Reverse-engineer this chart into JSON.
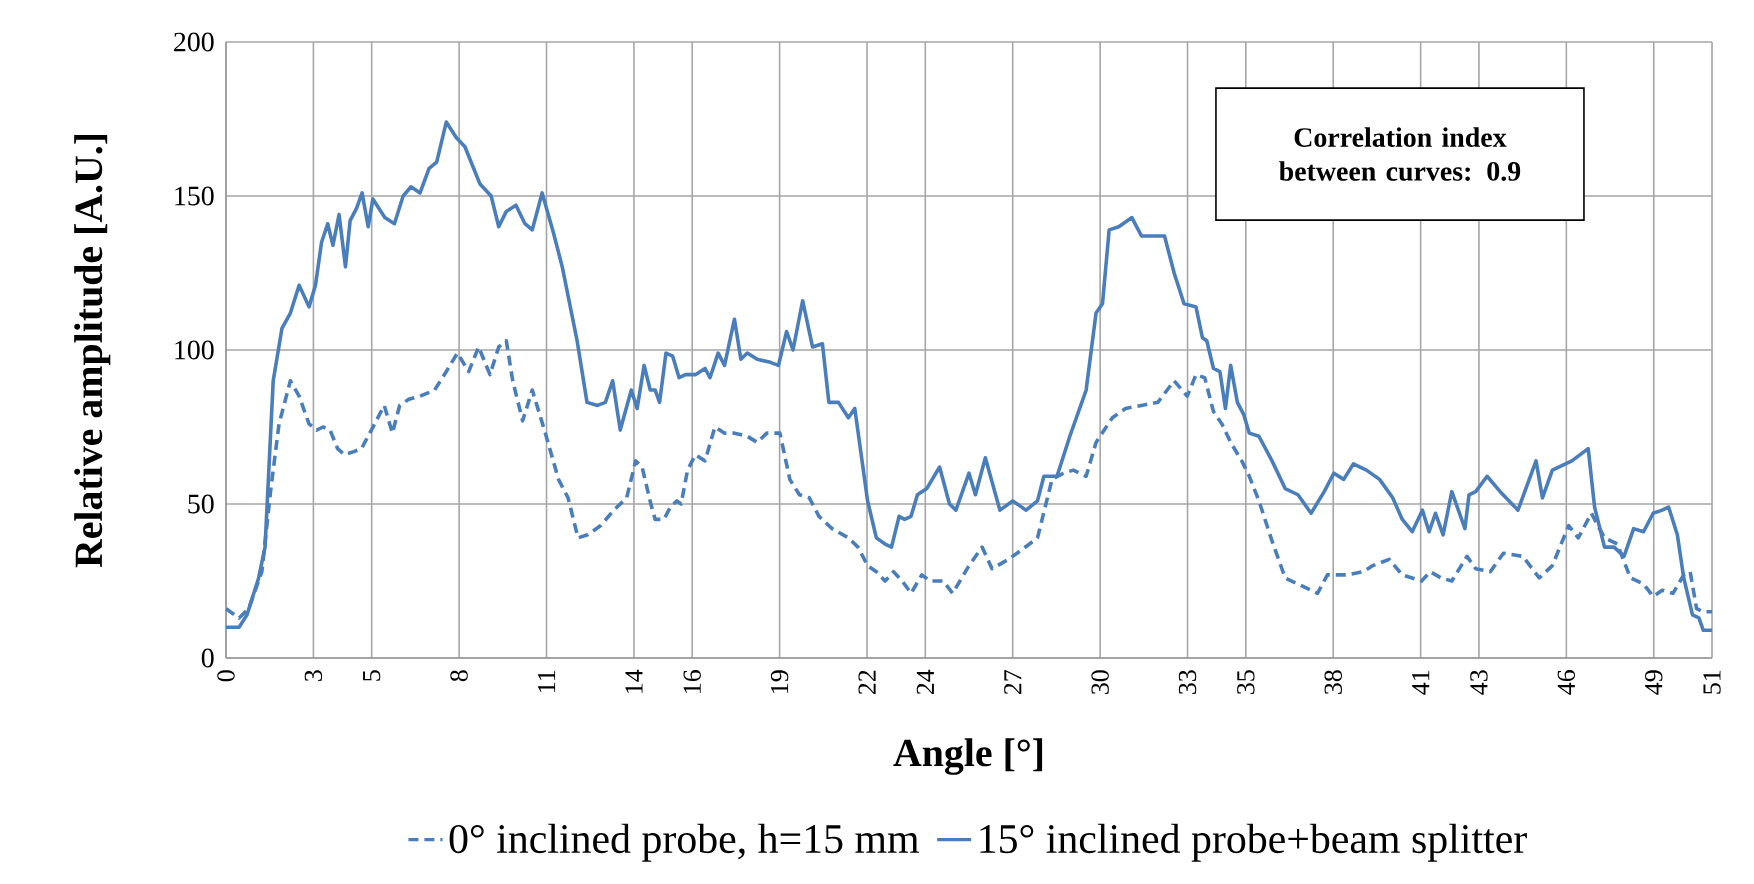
{
  "chart_data": {
    "type": "line",
    "xlabel": "Angle [°]",
    "ylabel": "Relative amplitude [A.U.]",
    "xlim": [
      0,
      51
    ],
    "ylim": [
      0,
      200
    ],
    "xticks": [
      0,
      3,
      5,
      8,
      11,
      14,
      16,
      19,
      22,
      24,
      27,
      30,
      33,
      35,
      38,
      41,
      43,
      46,
      49,
      51
    ],
    "yticks": [
      0,
      50,
      100,
      150,
      200
    ],
    "grid": true,
    "legend": "bottom",
    "marker": "none",
    "annotations": [
      "Correlation index between curves: 0.9"
    ],
    "series": [
      {
        "name": "0° inclined probe, h=15 mm",
        "color": "#4a7ebb",
        "line_style": "dashed",
        "x": [
          0,
          0.45,
          0.78,
          1.23,
          1.54,
          1.82,
          2.21,
          2.51,
          2.85,
          3.11,
          3.33,
          3.57,
          3.83,
          4.06,
          4.39,
          4.65,
          4.99,
          5.43,
          5.71,
          5.96,
          6.27,
          6.66,
          7.16,
          7.56,
          7.94,
          8.33,
          8.67,
          9.06,
          9.36,
          9.62,
          9.84,
          10.18,
          10.51,
          10.96,
          11.41,
          11.74,
          12.08,
          12.41,
          12.86,
          13.31,
          13.75,
          14.06,
          14.28,
          14.58,
          14.73,
          15.03,
          15.25,
          15.47,
          15.62,
          15.84,
          16.11,
          16.44,
          16.78,
          17.11,
          17.45,
          17.89,
          18.23,
          18.56,
          19.01,
          19.35,
          19.68,
          20.02,
          20.35,
          20.8,
          21.36,
          21.69,
          22.02,
          22.32,
          22.62,
          22.91,
          23.21,
          23.51,
          23.88,
          24.16,
          24.61,
          24.94,
          25.5,
          25.95,
          26.29,
          26.85,
          27.29,
          27.85,
          28.35,
          28.74,
          29.08,
          29.52,
          29.86,
          30.42,
          30.87,
          31.42,
          31.98,
          32.54,
          32.99,
          33.29,
          33.59,
          33.89,
          34.18,
          34.48,
          34.86,
          35.12,
          35.45,
          35.9,
          36.35,
          36.79,
          37.46,
          37.8,
          38.47,
          39.03,
          39.36,
          39.92,
          40.37,
          41.03,
          41.33,
          41.7,
          42.07,
          42.59,
          42.89,
          43.39,
          43.84,
          44.51,
          45.07,
          45.52,
          46.08,
          46.41,
          46.86,
          47.31,
          47.75,
          48.2,
          48.65,
          48.98,
          49.29,
          49.66,
          50.03,
          50.25,
          50.47,
          50.7,
          51
        ],
        "values": [
          16,
          13,
          16,
          28,
          55,
          76,
          90,
          85,
          76,
          74,
          75,
          74,
          68,
          66,
          67,
          68,
          74,
          82,
          73,
          82,
          84,
          85,
          87,
          93,
          99,
          93,
          101,
          92,
          101,
          103,
          90,
          77,
          87,
          73,
          58,
          52,
          39,
          40,
          43,
          48,
          52,
          64,
          62,
          50,
          45,
          45,
          49,
          51,
          50,
          61,
          66,
          64,
          75,
          73,
          73,
          72,
          70,
          73,
          73,
          58,
          53,
          52,
          46,
          42,
          39,
          36,
          30,
          28,
          25,
          28,
          25,
          21,
          27,
          25,
          25,
          21,
          30,
          36,
          29,
          32,
          35,
          39,
          58,
          60,
          61,
          59,
          70,
          78,
          81,
          82,
          83,
          90,
          85,
          92,
          91,
          80,
          76,
          70,
          64,
          59,
          51,
          38,
          26,
          24,
          21,
          27,
          27,
          28,
          30,
          32,
          27,
          25,
          28,
          26,
          25,
          33,
          29,
          28,
          34,
          33,
          26,
          30,
          43,
          39,
          47,
          39,
          37,
          26,
          24,
          20,
          22,
          21,
          27,
          28,
          16,
          15,
          15
        ]
      },
      {
        "name": "15° inclined probe+beam splitter",
        "color": "#4a7ebb",
        "line_style": "solid",
        "x": [
          0,
          0.45,
          0.72,
          1.12,
          1.34,
          1.62,
          1.92,
          2.21,
          2.51,
          2.85,
          3.07,
          3.28,
          3.49,
          3.67,
          3.88,
          4.1,
          4.26,
          4.48,
          4.67,
          4.88,
          5.04,
          5.45,
          5.78,
          6.08,
          6.35,
          6.66,
          6.97,
          7.23,
          7.56,
          7.9,
          8.2,
          8.71,
          9.1,
          9.36,
          9.62,
          9.95,
          10.26,
          10.51,
          10.85,
          11.24,
          11.54,
          12.05,
          12.39,
          12.75,
          13.02,
          13.27,
          13.53,
          13.91,
          14.11,
          14.35,
          14.56,
          14.73,
          14.88,
          15.1,
          15.33,
          15.55,
          15.77,
          16.11,
          16.44,
          16.61,
          16.89,
          17.11,
          17.45,
          17.67,
          17.89,
          18.23,
          18.68,
          18.96,
          19.24,
          19.46,
          19.79,
          20.13,
          20.47,
          20.69,
          21.02,
          21.36,
          21.58,
          22.02,
          22.32,
          22.62,
          22.84,
          23.1,
          23.29,
          23.51,
          23.73,
          24.05,
          24.49,
          24.83,
          25.05,
          25.5,
          25.72,
          26.06,
          26.56,
          27.0,
          27.46,
          27.85,
          28.07,
          28.52,
          28.96,
          29.52,
          29.86,
          30.08,
          30.31,
          30.64,
          31.09,
          31.42,
          32.21,
          32.54,
          32.88,
          33.29,
          33.51,
          33.66,
          33.89,
          34.11,
          34.3,
          34.48,
          34.71,
          34.93,
          35.12,
          35.45,
          35.9,
          36.35,
          36.79,
          37.24,
          37.69,
          38.02,
          38.36,
          38.69,
          39.14,
          39.59,
          40.04,
          40.37,
          40.71,
          41.06,
          41.29,
          41.51,
          41.77,
          42.07,
          42.52,
          42.66,
          42.89,
          43.28,
          43.73,
          44.34,
          44.96,
          45.18,
          45.52,
          46.19,
          46.75,
          46.97,
          47.31,
          47.64,
          47.98,
          48.31,
          48.65,
          48.98,
          49.29,
          49.51,
          49.81,
          50.03,
          50.33,
          50.55,
          50.7,
          51
        ],
        "values": [
          10,
          10,
          14,
          26,
          36,
          90,
          107,
          112,
          121,
          114,
          121,
          135,
          141,
          134,
          144,
          127,
          142,
          146,
          151,
          140,
          149,
          143,
          141,
          150,
          153,
          151,
          159,
          161,
          174,
          169,
          166,
          154,
          150,
          140,
          145,
          147,
          141,
          139,
          151,
          138,
          127,
          103,
          83,
          82,
          83,
          90,
          74,
          87,
          81,
          95,
          87,
          87,
          83,
          99,
          98,
          91,
          92,
          92,
          94,
          91,
          99,
          95,
          110,
          97,
          99,
          97,
          96,
          95,
          106,
          100,
          116,
          101,
          102,
          83,
          83,
          78,
          81,
          51,
          39,
          37,
          36,
          46,
          45,
          46,
          53,
          55,
          62,
          50,
          48,
          60,
          53,
          65,
          48,
          51,
          48,
          51,
          59,
          59,
          72,
          87,
          112,
          115,
          139,
          140,
          143,
          137,
          137,
          125,
          115,
          114,
          104,
          103,
          94,
          93,
          81,
          95,
          83,
          79,
          73,
          72,
          64,
          55,
          53,
          47,
          54,
          60,
          58,
          63,
          61,
          58,
          52,
          45,
          41,
          48,
          41,
          47,
          40,
          54,
          42,
          53,
          54,
          59,
          54,
          48,
          64,
          52,
          61,
          64,
          68,
          49,
          36,
          36,
          33,
          42,
          41,
          47,
          48,
          49,
          40,
          26,
          14,
          13,
          9,
          9
        ]
      }
    ]
  }
}
